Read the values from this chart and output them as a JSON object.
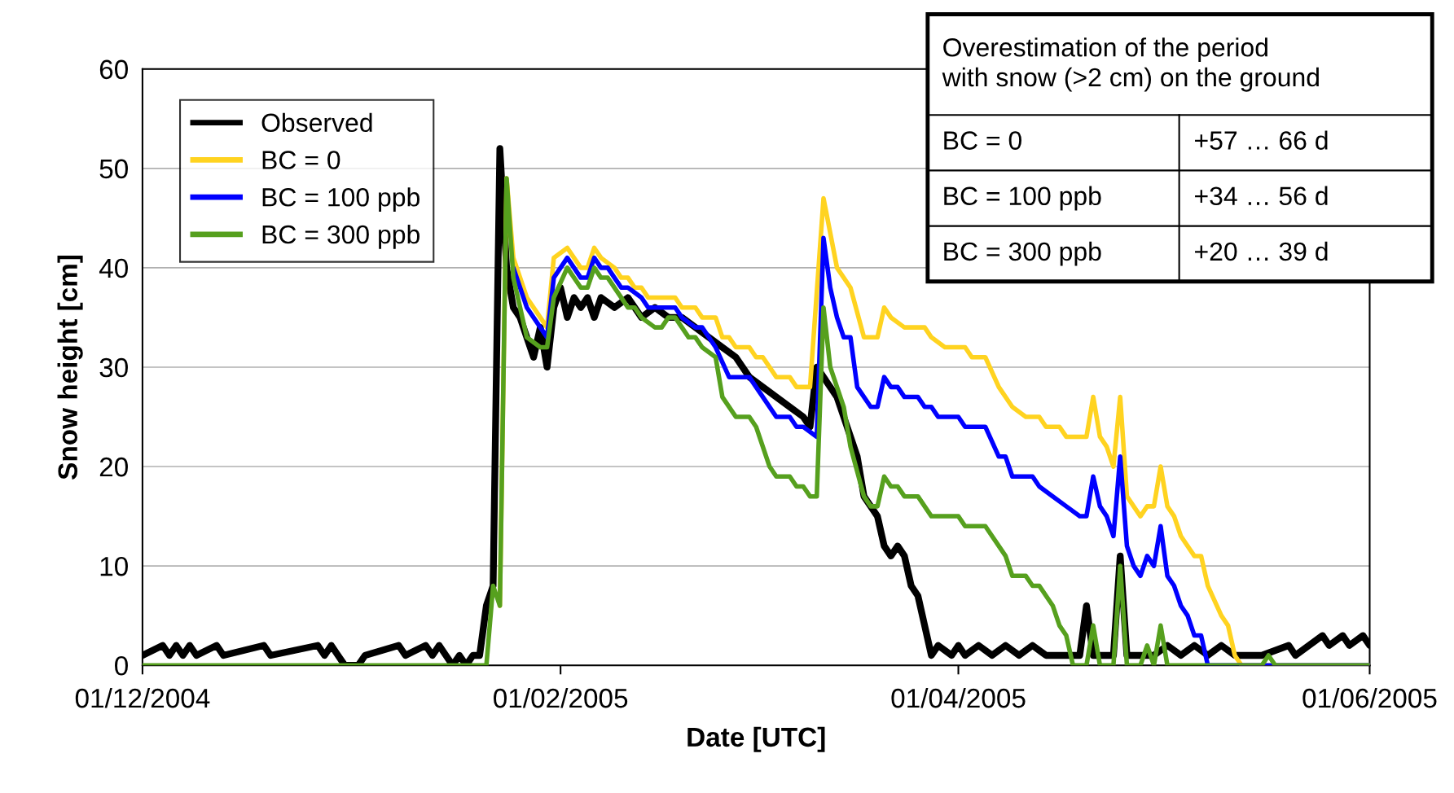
{
  "chart_data": {
    "type": "line",
    "xlabel": "Date [UTC]",
    "ylabel": "Snow height [cm]",
    "xlim": [
      "2004-12-01",
      "2005-06-01"
    ],
    "xticks": [
      {
        "value": "2004-12-01",
        "label": "01/12/2004"
      },
      {
        "value": "2005-02-01",
        "label": "01/02/2005"
      },
      {
        "value": "2005-04-01",
        "label": "01/04/2005"
      },
      {
        "value": "2005-06-01",
        "label": "01/06/2005"
      }
    ],
    "ylim": [
      0,
      60
    ],
    "yticks": [
      0,
      10,
      20,
      30,
      40,
      50,
      60
    ],
    "grid": "y",
    "legend": "top left",
    "marker": "none",
    "line_style": "solid",
    "annotations": [
      "Overestimation of the period\nwith snow (>2 cm) on the ground",
      "BC = 0",
      "+57 … 66 d",
      "BC = 100 ppb",
      "+34 … 56 d",
      "BC = 300 ppb",
      "+20 … 39 d"
    ],
    "series": [
      {
        "name": "Observed",
        "color": "#000000",
        "x": [
          "2004-12-01",
          "2004-12-04",
          "2004-12-05",
          "2004-12-06",
          "2004-12-07",
          "2004-12-08",
          "2004-12-09",
          "2004-12-12",
          "2004-12-13",
          "2004-12-19",
          "2004-12-20",
          "2004-12-27",
          "2004-12-28",
          "2004-12-29",
          "2004-12-30",
          "2004-12-31",
          "2005-01-02",
          "2005-01-03",
          "2005-01-08",
          "2005-01-09",
          "2005-01-12",
          "2005-01-13",
          "2005-01-14",
          "2005-01-15",
          "2005-01-16",
          "2005-01-17",
          "2005-01-18",
          "2005-01-19",
          "2005-01-20",
          "2005-01-21",
          "2005-01-22",
          "2005-01-23",
          "2005-01-24",
          "2005-01-25",
          "2005-01-26",
          "2005-01-27",
          "2005-01-28",
          "2005-01-29",
          "2005-01-30",
          "2005-01-31",
          "2005-02-01",
          "2005-02-02",
          "2005-02-03",
          "2005-02-04",
          "2005-02-05",
          "2005-02-06",
          "2005-02-07",
          "2005-02-09",
          "2005-02-11",
          "2005-02-13",
          "2005-02-15",
          "2005-02-17",
          "2005-02-19",
          "2005-02-21",
          "2005-02-23",
          "2005-02-25",
          "2005-02-27",
          "2005-03-01",
          "2005-03-03",
          "2005-03-05",
          "2005-03-07",
          "2005-03-09",
          "2005-03-10",
          "2005-03-11",
          "2005-03-12",
          "2005-03-14",
          "2005-03-15",
          "2005-03-16",
          "2005-03-17",
          "2005-03-18",
          "2005-03-19",
          "2005-03-20",
          "2005-03-21",
          "2005-03-22",
          "2005-03-23",
          "2005-03-24",
          "2005-03-25",
          "2005-03-26",
          "2005-03-27",
          "2005-03-28",
          "2005-03-29",
          "2005-03-31",
          "2005-04-01",
          "2005-04-02",
          "2005-04-04",
          "2005-04-06",
          "2005-04-08",
          "2005-04-10",
          "2005-04-12",
          "2005-04-14",
          "2005-04-16",
          "2005-04-19",
          "2005-04-20",
          "2005-04-21",
          "2005-04-24",
          "2005-04-25",
          "2005-04-26",
          "2005-04-30",
          "2005-05-02",
          "2005-05-04",
          "2005-05-06",
          "2005-05-08",
          "2005-05-10",
          "2005-05-12",
          "2005-05-16",
          "2005-05-20",
          "2005-05-21",
          "2005-05-25",
          "2005-05-26",
          "2005-05-28",
          "2005-05-29",
          "2005-05-31",
          "2005-06-01"
        ],
        "values": [
          1,
          2,
          1,
          2,
          1,
          2,
          1,
          2,
          1,
          2,
          1,
          2,
          1,
          2,
          1,
          0,
          0,
          1,
          2,
          1,
          2,
          1,
          2,
          1,
          0,
          1,
          0,
          1,
          1,
          6,
          8,
          52,
          40,
          36,
          35,
          33,
          31,
          34,
          30,
          36,
          38,
          35,
          37,
          36,
          37,
          35,
          37,
          36,
          37,
          35,
          36,
          35,
          35,
          34,
          33,
          32,
          31,
          29,
          28,
          27,
          26,
          25,
          24,
          30,
          29,
          27,
          25,
          23,
          21,
          17,
          16,
          15,
          12,
          11,
          12,
          11,
          8,
          7,
          4,
          1,
          2,
          1,
          2,
          1,
          2,
          1,
          2,
          1,
          2,
          1,
          1,
          1,
          6,
          1,
          1,
          11,
          1,
          1,
          2,
          1,
          2,
          1,
          2,
          1,
          1,
          2,
          1,
          3,
          2,
          3,
          2,
          3,
          2
        ]
      },
      {
        "name": "BC = 0",
        "color": "#ffd320",
        "x": [
          "2005-01-23",
          "2005-01-24",
          "2005-01-25",
          "2005-01-27",
          "2005-01-30",
          "2005-01-31",
          "2005-02-02",
          "2005-02-04",
          "2005-02-05",
          "2005-02-06",
          "2005-02-07",
          "2005-02-09",
          "2005-02-10",
          "2005-02-11",
          "2005-02-12",
          "2005-02-13",
          "2005-02-14",
          "2005-02-18",
          "2005-02-19",
          "2005-02-21",
          "2005-02-22",
          "2005-02-24",
          "2005-02-25",
          "2005-02-26",
          "2005-02-27",
          "2005-03-01",
          "2005-03-02",
          "2005-03-03",
          "2005-03-05",
          "2005-03-07",
          "2005-03-08",
          "2005-03-10",
          "2005-03-12",
          "2005-03-14",
          "2005-03-16",
          "2005-03-18",
          "2005-03-20",
          "2005-03-21",
          "2005-03-22",
          "2005-03-24",
          "2005-03-27",
          "2005-03-28",
          "2005-03-30",
          "2005-04-02",
          "2005-04-03",
          "2005-04-05",
          "2005-04-07",
          "2005-04-09",
          "2005-04-11",
          "2005-04-13",
          "2005-04-14",
          "2005-04-16",
          "2005-04-17",
          "2005-04-20",
          "2005-04-21",
          "2005-04-22",
          "2005-04-23",
          "2005-04-24",
          "2005-04-25",
          "2005-04-26",
          "2005-04-28",
          "2005-04-29",
          "2005-04-30",
          "2005-05-01",
          "2005-05-02",
          "2005-05-03",
          "2005-05-04",
          "2005-05-06",
          "2005-05-07",
          "2005-05-08",
          "2005-05-10",
          "2005-05-11",
          "2005-05-12",
          "2005-05-13",
          "2005-06-01"
        ],
        "values": [
          6,
          49,
          41,
          37,
          34,
          41,
          42,
          40,
          40,
          42,
          41,
          40,
          39,
          39,
          38,
          38,
          37,
          37,
          36,
          36,
          35,
          35,
          33,
          33,
          32,
          32,
          31,
          31,
          29,
          29,
          28,
          28,
          47,
          40,
          38,
          33,
          33,
          36,
          35,
          34,
          34,
          33,
          32,
          32,
          31,
          31,
          28,
          26,
          25,
          25,
          24,
          24,
          23,
          23,
          27,
          23,
          22,
          20,
          27,
          17,
          15,
          16,
          16,
          20,
          16,
          15,
          13,
          11,
          11,
          8,
          5,
          4,
          1,
          0,
          0
        ]
      },
      {
        "name": "BC = 100 ppb",
        "color": "#0000ff",
        "x": [
          "2005-01-25",
          "2005-01-27",
          "2005-01-30",
          "2005-01-31",
          "2005-02-02",
          "2005-02-04",
          "2005-02-05",
          "2005-02-06",
          "2005-02-07",
          "2005-02-08",
          "2005-02-09",
          "2005-02-10",
          "2005-02-11",
          "2005-02-13",
          "2005-02-14",
          "2005-02-18",
          "2005-02-19",
          "2005-02-21",
          "2005-02-22",
          "2005-02-24",
          "2005-02-26",
          "2005-03-01",
          "2005-03-02",
          "2005-03-05",
          "2005-03-07",
          "2005-03-08",
          "2005-03-09",
          "2005-03-11",
          "2005-03-12",
          "2005-03-13",
          "2005-03-14",
          "2005-03-15",
          "2005-03-16",
          "2005-03-17",
          "2005-03-19",
          "2005-03-20",
          "2005-03-21",
          "2005-03-22",
          "2005-03-23",
          "2005-03-24",
          "2005-03-26",
          "2005-03-27",
          "2005-03-28",
          "2005-03-29",
          "2005-04-01",
          "2005-04-02",
          "2005-04-05",
          "2005-04-07",
          "2005-04-08",
          "2005-04-09",
          "2005-04-12",
          "2005-04-13",
          "2005-04-15",
          "2005-04-17",
          "2005-04-19",
          "2005-04-20",
          "2005-04-21",
          "2005-04-22",
          "2005-04-23",
          "2005-04-24",
          "2005-04-25",
          "2005-04-26",
          "2005-04-27",
          "2005-04-28",
          "2005-04-29",
          "2005-04-30",
          "2005-05-01",
          "2005-05-02",
          "2005-05-03",
          "2005-05-04",
          "2005-05-05",
          "2005-05-06",
          "2005-05-07",
          "2005-05-08",
          "2005-06-01"
        ],
        "values": [
          40,
          36,
          33,
          39,
          41,
          39,
          39,
          41,
          40,
          40,
          39,
          38,
          38,
          37,
          36,
          36,
          35,
          34,
          34,
          32,
          29,
          29,
          28,
          25,
          25,
          24,
          24,
          23,
          43,
          38,
          35,
          33,
          33,
          28,
          26,
          26,
          29,
          28,
          28,
          27,
          27,
          26,
          26,
          25,
          25,
          24,
          24,
          21,
          21,
          19,
          19,
          18,
          17,
          16,
          15,
          15,
          19,
          16,
          15,
          13,
          21,
          12,
          10,
          9,
          11,
          10,
          14,
          9,
          8,
          6,
          5,
          3,
          3,
          0,
          0
        ]
      },
      {
        "name": "BC = 300 ppb",
        "color": "#56a01e",
        "x": [
          "2004-12-01",
          "2005-01-21",
          "2005-01-22",
          "2005-01-23",
          "2005-01-24",
          "2005-01-25",
          "2005-01-26",
          "2005-01-27",
          "2005-01-29",
          "2005-01-30",
          "2005-01-31",
          "2005-02-02",
          "2005-02-04",
          "2005-02-05",
          "2005-02-06",
          "2005-02-07",
          "2005-02-08",
          "2005-02-11",
          "2005-02-12",
          "2005-02-13",
          "2005-02-15",
          "2005-02-16",
          "2005-02-17",
          "2005-02-18",
          "2005-02-20",
          "2005-02-21",
          "2005-02-22",
          "2005-02-24",
          "2005-02-25",
          "2005-02-27",
          "2005-03-01",
          "2005-03-02",
          "2005-03-04",
          "2005-03-05",
          "2005-03-07",
          "2005-03-08",
          "2005-03-09",
          "2005-03-10",
          "2005-03-11",
          "2005-03-12",
          "2005-03-13",
          "2005-03-14",
          "2005-03-15",
          "2005-03-16",
          "2005-03-18",
          "2005-03-19",
          "2005-03-20",
          "2005-03-21",
          "2005-03-22",
          "2005-03-23",
          "2005-03-24",
          "2005-03-26",
          "2005-03-28",
          "2005-04-01",
          "2005-04-02",
          "2005-04-05",
          "2005-04-08",
          "2005-04-09",
          "2005-04-11",
          "2005-04-12",
          "2005-04-13",
          "2005-04-15",
          "2005-04-16",
          "2005-04-17",
          "2005-04-18",
          "2005-04-20",
          "2005-04-21",
          "2005-04-22",
          "2005-04-24",
          "2005-04-25",
          "2005-04-26",
          "2005-04-28",
          "2005-04-29",
          "2005-04-30",
          "2005-05-01",
          "2005-05-02",
          "2005-05-16",
          "2005-05-17",
          "2005-05-18",
          "2005-06-01"
        ],
        "values": [
          0,
          0,
          8,
          6,
          49,
          39,
          36,
          33,
          32,
          32,
          37,
          40,
          38,
          38,
          40,
          39,
          39,
          36,
          36,
          35,
          34,
          34,
          35,
          35,
          33,
          33,
          32,
          31,
          27,
          25,
          25,
          24,
          20,
          19,
          19,
          18,
          18,
          17,
          17,
          36,
          30,
          28,
          26,
          22,
          17,
          16,
          16,
          19,
          18,
          18,
          17,
          17,
          15,
          15,
          14,
          14,
          11,
          9,
          9,
          8,
          8,
          6,
          4,
          3,
          0,
          0,
          4,
          0,
          0,
          10,
          0,
          0,
          2,
          0,
          4,
          0,
          0,
          1,
          0,
          0
        ]
      }
    ]
  }
}
